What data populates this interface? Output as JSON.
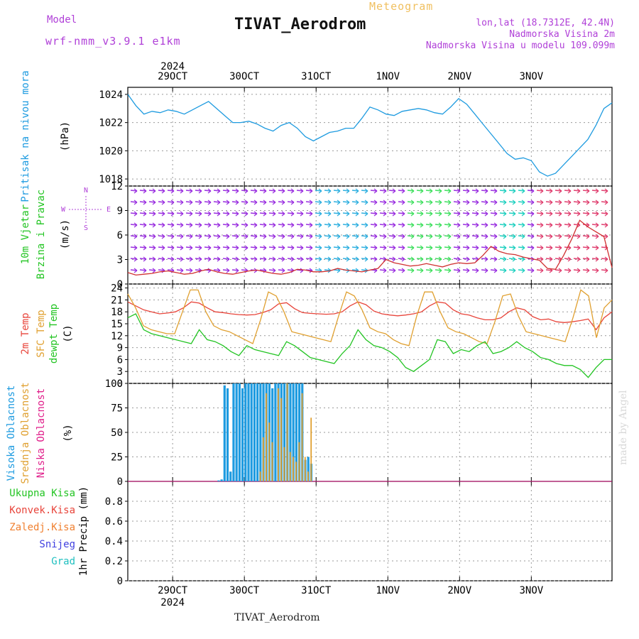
{
  "header": {
    "model_label": "Model",
    "model_name": "wrf-nmm_v3.9.1 e1km",
    "meteogram_label": "Meteogram",
    "title": "TIVAT_Aerodrom",
    "lonlat": "lon,lat (18.7312E, 42.4N)",
    "elevation": "Nadmorska Visina 2m",
    "elevation_model": "Nadmorska Visina u modelu 109.099m"
  },
  "footer": {
    "station": "TIVAT_Aerodrom",
    "watermark": "made by Angel"
  },
  "time_axis": {
    "year": "2024",
    "ticks": [
      "29OCT",
      "30OCT",
      "31OCT",
      "1NOV",
      "2NOV",
      "3NOV"
    ]
  },
  "colors": {
    "pressure": "#1e9be0",
    "temp2m": "#e8443a",
    "sfctemp": "#e0a030",
    "dewpoint": "#22c422",
    "high_cloud": "#1e9be0",
    "mid_cloud": "#e0a030",
    "low_cloud": "#e01e8a",
    "total_precip": "#22c422",
    "conv_precip": "#e8443a",
    "frozen_precip": "#f08030",
    "snow": "#4040e0",
    "hail": "#20c0c0",
    "wind_label": "#22c422",
    "wind_dir_label": "#b040d8"
  },
  "chart_data": [
    {
      "type": "line",
      "panel": "pressure",
      "ylabel_title": "Pritisak na nivou mora",
      "ylabel_unit": "(hPa)",
      "ylim": [
        1017.5,
        1024.5
      ],
      "yticks": [
        1018,
        1020,
        1022,
        1024
      ],
      "x_hours_start": 0,
      "series": [
        {
          "values": [
            1024.0,
            1023.2,
            1022.6,
            1022.8,
            1022.7,
            1022.9,
            1022.8,
            1022.6,
            1022.9,
            1023.2,
            1023.5,
            1023.0,
            1022.5,
            1022.0,
            1022.0,
            1022.1,
            1021.9,
            1021.6,
            1021.4,
            1021.8,
            1022.0,
            1021.6,
            1021.0,
            1020.7,
            1021.0,
            1021.3,
            1021.4,
            1021.6,
            1021.6,
            1022.3,
            1023.1,
            1022.9,
            1022.6,
            1022.5,
            1022.8,
            1022.9,
            1023.0,
            1022.9,
            1022.7,
            1022.6,
            1023.1,
            1023.7,
            1023.3,
            1022.6,
            1021.9,
            1021.2,
            1020.5,
            1019.8,
            1019.4,
            1019.5,
            1019.3,
            1018.5,
            1018.2,
            1018.4,
            1019.0,
            1019.6,
            1020.2,
            1020.8,
            1021.8,
            1023.0,
            1023.4
          ]
        }
      ]
    },
    {
      "type": "line",
      "panel": "wind",
      "ylabel_title_1": "10m Vjetar",
      "ylabel_title_2": "Brzina i Pravac",
      "ylabel_unit": "(m/s)",
      "ylim": [
        0,
        12
      ],
      "yticks": [
        0,
        3,
        6,
        9,
        12
      ],
      "compass": [
        "N",
        "W",
        "E",
        "S"
      ],
      "series": [
        {
          "name": "wind speed",
          "values": [
            1.4,
            1.1,
            1.2,
            1.3,
            1.5,
            1.6,
            1.4,
            1.2,
            1.3,
            1.6,
            1.8,
            1.5,
            1.3,
            1.2,
            1.4,
            1.6,
            1.7,
            1.5,
            1.3,
            1.2,
            1.4,
            1.8,
            1.7,
            1.5,
            1.5,
            1.6,
            1.9,
            1.7,
            1.6,
            1.5,
            1.7,
            1.9,
            3.0,
            2.6,
            2.4,
            2.2,
            2.3,
            2.5,
            2.3,
            2.1,
            2.4,
            2.6,
            2.5,
            2.6,
            3.5,
            4.6,
            4.0,
            3.7,
            3.6,
            3.3,
            3.1,
            2.9,
            1.9,
            1.8,
            3.5,
            5.5,
            7.8,
            7.0,
            6.4,
            5.8,
            2.0
          ]
        }
      ]
    },
    {
      "type": "line",
      "panel": "temperature",
      "ylabel_1": "2m Temp",
      "ylabel_2": "SFC Temp",
      "ylabel_3": "dewpt Temp",
      "ylabel_unit": "(C)",
      "ylim": [
        0,
        25
      ],
      "yticks": [
        0,
        3,
        6,
        9,
        12,
        15,
        18,
        21,
        24
      ],
      "series": [
        {
          "name": "2m Temp",
          "values": [
            20.5,
            19.5,
            18.5,
            18.0,
            17.5,
            17.7,
            18.0,
            19.0,
            20.5,
            20.2,
            19.0,
            18.0,
            17.8,
            17.5,
            17.3,
            17.2,
            17.3,
            17.8,
            18.5,
            20.0,
            20.3,
            18.8,
            17.8,
            17.6,
            17.5,
            17.4,
            17.5,
            18.0,
            19.5,
            20.5,
            19.8,
            18.2,
            17.5,
            17.2,
            17.0,
            17.2,
            17.5,
            18.0,
            19.5,
            20.5,
            20.2,
            18.5,
            17.5,
            17.2,
            16.5,
            16.0,
            16.0,
            16.5,
            18.0,
            19.0,
            18.5,
            16.8,
            16.0,
            16.2,
            15.5,
            15.3,
            15.5,
            15.8,
            16.2,
            13.5,
            16.5,
            18.0
          ]
        },
        {
          "name": "SFC Temp",
          "values": [
            22.5,
            19.0,
            14.5,
            13.5,
            13.0,
            12.5,
            12.5,
            18.0,
            23.5,
            23.5,
            18.0,
            14.5,
            13.5,
            13.0,
            12.0,
            11.0,
            10.0,
            16.0,
            23.0,
            22.0,
            18.0,
            13.0,
            12.5,
            12.0,
            11.5,
            11.0,
            10.5,
            17.0,
            23.0,
            22.0,
            18.5,
            14.0,
            13.0,
            12.5,
            11.0,
            10.0,
            9.5,
            17.0,
            23.0,
            23.0,
            18.0,
            14.0,
            13.0,
            12.5,
            11.5,
            10.5,
            10.0,
            15.5,
            22.0,
            22.5,
            17.0,
            13.0,
            12.5,
            12.0,
            11.5,
            11.0,
            10.5,
            16.5,
            23.5,
            22.0,
            11.5,
            19.0,
            21.0
          ]
        },
        {
          "name": "dewpt Temp",
          "values": [
            16.5,
            17.5,
            13.5,
            12.5,
            12.0,
            11.5,
            11.0,
            10.5,
            10.0,
            13.5,
            11.0,
            10.5,
            9.5,
            8.0,
            7.0,
            9.5,
            8.5,
            8.0,
            7.5,
            7.0,
            10.5,
            9.5,
            8.0,
            6.5,
            6.0,
            5.5,
            5.0,
            7.5,
            9.5,
            13.5,
            11.0,
            9.5,
            9.0,
            8.0,
            6.5,
            4.0,
            3.0,
            4.5,
            6.0,
            11.0,
            10.5,
            7.5,
            8.5,
            8.0,
            9.5,
            10.5,
            7.5,
            8.0,
            9.0,
            10.5,
            9.0,
            8.0,
            6.5,
            6.0,
            5.0,
            4.5,
            4.5,
            3.5,
            1.5,
            4.0,
            6.0,
            6.0
          ]
        }
      ]
    },
    {
      "type": "bar",
      "panel": "cloud",
      "ylabel_1": "Visoka Oblacnost",
      "ylabel_2": "Srednja Oblacnost",
      "ylabel_3": "Niska Oblacnost",
      "ylabel_unit": "(%)",
      "ylim": [
        0,
        100
      ],
      "yticks": [
        0,
        25,
        50,
        75,
        100
      ],
      "series": [
        {
          "name": "Visoka Oblacnost",
          "x_hours": [
            30,
            31,
            32,
            33,
            34,
            35,
            36,
            37,
            38,
            39,
            40,
            41,
            42,
            43,
            44,
            45,
            46,
            47,
            48,
            49,
            50,
            51,
            52,
            53,
            54,
            55,
            56,
            57,
            58,
            59,
            60,
            61
          ],
          "values": [
            1,
            2,
            98,
            95,
            10,
            100,
            100,
            100,
            95,
            100,
            100,
            100,
            100,
            100,
            100,
            100,
            100,
            100,
            95,
            100,
            100,
            100,
            100,
            100,
            100,
            100,
            100,
            100,
            100,
            22,
            25,
            18
          ]
        },
        {
          "name": "Srednja Oblacnost",
          "x_hours": [
            44,
            45,
            46,
            47,
            48,
            50,
            51,
            52,
            53,
            54,
            55,
            56,
            57,
            58,
            59,
            60,
            61
          ],
          "values": [
            10,
            45,
            90,
            60,
            40,
            95,
            85,
            35,
            100,
            30,
            25,
            20,
            40,
            90,
            25,
            10,
            65
          ]
        },
        {
          "name": "Niska Oblacnost",
          "x_hours": [],
          "values": []
        }
      ]
    },
    {
      "type": "bar",
      "panel": "precip",
      "ylabel": "1hr Precip (mm)",
      "ylim": [
        0,
        1
      ],
      "yticks": [
        0,
        0.2,
        0.4,
        0.6,
        0.8
      ],
      "legend": [
        "Ukupna Kisa",
        "Konvek.Kisa",
        "Zaledj.Kisa",
        "Snijeg",
        "Grad"
      ],
      "series": []
    }
  ]
}
